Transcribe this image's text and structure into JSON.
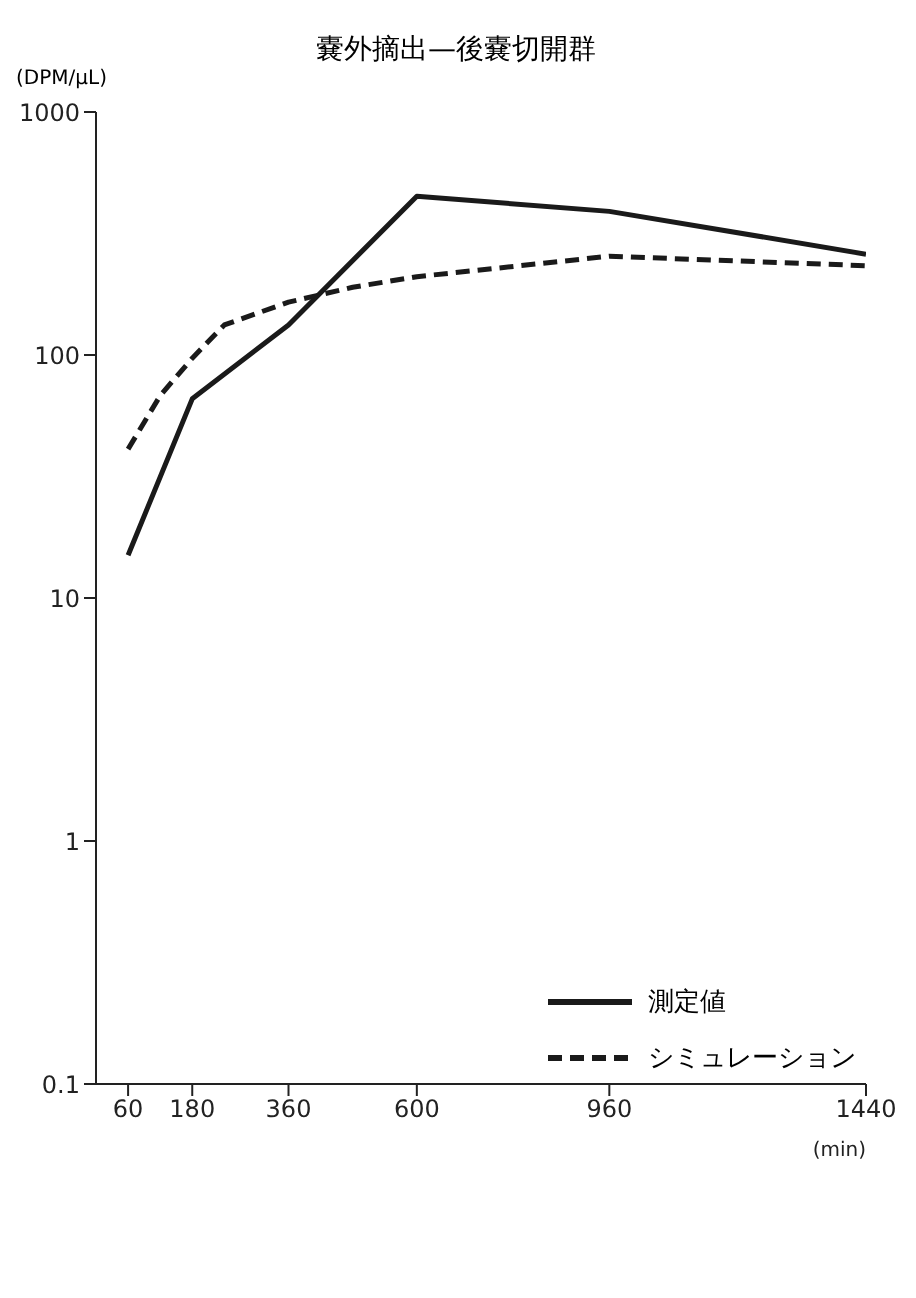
{
  "chart_data": {
    "type": "line",
    "title": "嚢外摘出—後嚢切開群",
    "ylabel": "(DPM/μL)",
    "xlabel": "(min)",
    "log": "y",
    "xlim": [
      0,
      1440
    ],
    "xticks": [
      60,
      180,
      360,
      600,
      960,
      1440
    ],
    "ylim": [
      0.1,
      1000
    ],
    "yticks": [
      0.1,
      1,
      10,
      100,
      1000
    ],
    "legend": "bottom right",
    "marker": "none",
    "series": [
      {
        "name": "測定値",
        "color": "#1a1a1a",
        "line_style": "solid",
        "x": [
          60,
          180,
          360,
          600,
          960,
          1440
        ],
        "values": [
          15,
          66,
          133,
          450,
          390,
          260
        ]
      },
      {
        "name": "シミュレーション",
        "color": "#1a1a1a",
        "line_style": "dashed",
        "x": [
          60,
          120,
          180,
          240,
          360,
          480,
          600,
          960,
          1440
        ],
        "values": [
          41,
          68,
          97,
          133,
          165,
          190,
          210,
          255,
          233
        ]
      }
    ]
  }
}
